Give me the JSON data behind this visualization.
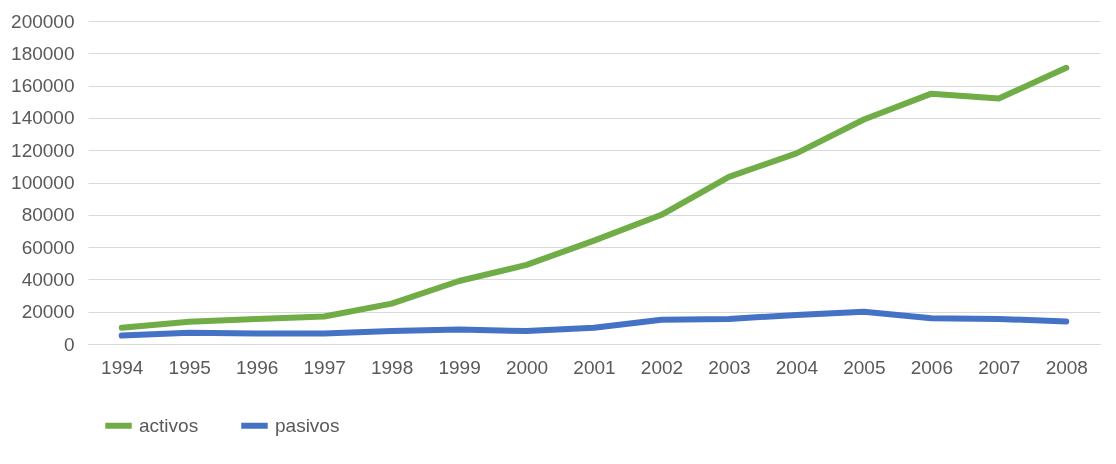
{
  "chart_data": {
    "type": "line",
    "categories": [
      "1994",
      "1995",
      "1996",
      "1997",
      "1998",
      "1999",
      "2000",
      "2001",
      "2002",
      "2003",
      "2004",
      "2005",
      "2006",
      "2007",
      "2008"
    ],
    "series": [
      {
        "name": "activos",
        "color": "#70ad47",
        "values": [
          10000,
          13800,
          15500,
          17000,
          25000,
          39000,
          49000,
          64000,
          80000,
          103500,
          118000,
          139000,
          155000,
          152000,
          171000
        ]
      },
      {
        "name": "pasivos",
        "color": "#4472c4",
        "values": [
          5200,
          7000,
          6500,
          6500,
          8000,
          9000,
          8000,
          10000,
          15000,
          15500,
          18000,
          20000,
          16000,
          15500,
          14000
        ]
      }
    ],
    "ylim": [
      0,
      200000
    ],
    "yticks": [
      0,
      20000,
      40000,
      60000,
      80000,
      100000,
      120000,
      140000,
      160000,
      180000,
      200000
    ],
    "grid": "y",
    "legend": "bottom",
    "marker": "none",
    "line_style": "solid"
  }
}
